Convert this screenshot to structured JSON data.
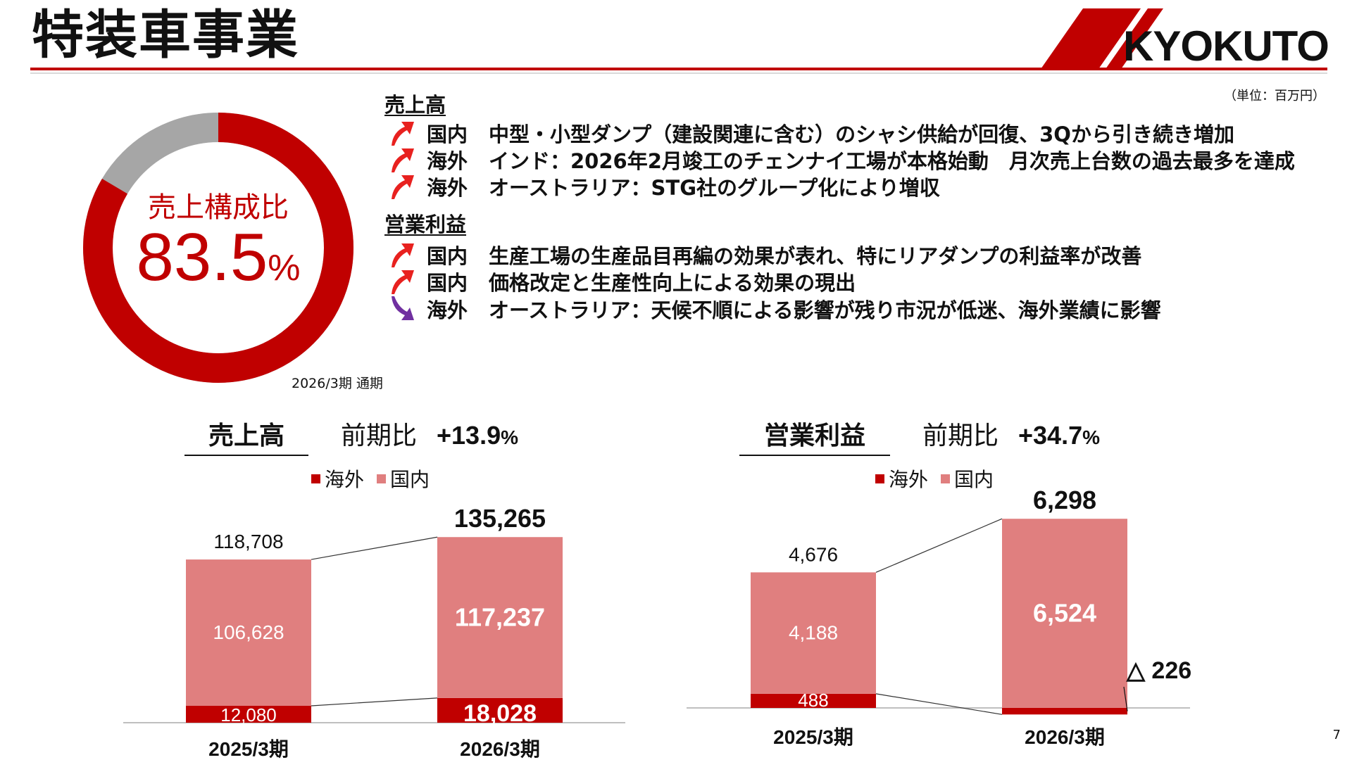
{
  "header": {
    "title": "特装車事業",
    "logo_text": "KYOKUTO",
    "unit": "（単位：百万円）"
  },
  "page_number": "7",
  "composition": {
    "label": "売上構成比",
    "value": "83.5",
    "value_unit": "%",
    "share": 83.5,
    "period": "2026/3期 通期",
    "colors": {
      "main": "#c00000",
      "rest": "#a6a6a6"
    }
  },
  "sections": [
    {
      "heading": "売上高",
      "items": [
        {
          "direction": "up",
          "region": "国内",
          "text": "中型・小型ダンプ（建設関連に含む）のシャシ供給が回復、3Qから引き続き増加"
        },
        {
          "direction": "up",
          "region": "海外",
          "text": "インド：2026年2月竣工のチェンナイ工場が本格始動　月次売上台数の過去最多を達成"
        },
        {
          "direction": "up",
          "region": "海外",
          "text": "オーストラリア：STG社のグループ化により増収"
        }
      ]
    },
    {
      "heading": "営業利益",
      "items": [
        {
          "direction": "up",
          "region": "国内",
          "text": "生産工場の生産品目再編の効果が表れ、特にリアダンプの利益率が改善"
        },
        {
          "direction": "up",
          "region": "国内",
          "text": "価格改定と生産性向上による効果の現出"
        },
        {
          "direction": "down",
          "region": "海外",
          "text": "オーストラリア：天候不順による影響が残り市況が低迷、海外業績に影響"
        }
      ]
    }
  ],
  "arrow_colors": {
    "up": "#e8211f",
    "down": "#7030a0"
  },
  "chart_data": [
    {
      "type": "bar",
      "title": "売上高",
      "comparison_label": "前期比",
      "change": "+13.9",
      "change_unit": "%",
      "categories": [
        "2025/3期",
        "2026/3期"
      ],
      "series": [
        {
          "name": "海外",
          "values": [
            12080,
            18028
          ],
          "labels": [
            "12,080",
            "18,028"
          ],
          "color": "#c00000"
        },
        {
          "name": "国内",
          "values": [
            106628,
            117237
          ],
          "labels": [
            "106,628",
            "117,237"
          ],
          "color": "#e07f7f"
        }
      ],
      "totals": [
        118708,
        135265
      ],
      "total_labels": [
        "118,708",
        "135,265"
      ]
    },
    {
      "type": "bar",
      "title": "営業利益",
      "comparison_label": "前期比",
      "change": "+34.7",
      "change_unit": "%",
      "categories": [
        "2025/3期",
        "2026/3期"
      ],
      "series": [
        {
          "name": "海外",
          "values": [
            488,
            -226
          ],
          "labels": [
            "488",
            "△ 226"
          ],
          "color": "#c00000"
        },
        {
          "name": "国内",
          "values": [
            4188,
            6524
          ],
          "labels": [
            "4,188",
            "6,524"
          ],
          "color": "#e07f7f"
        }
      ],
      "totals": [
        4676,
        6298
      ],
      "total_labels": [
        "4,676",
        "6,298"
      ]
    }
  ]
}
